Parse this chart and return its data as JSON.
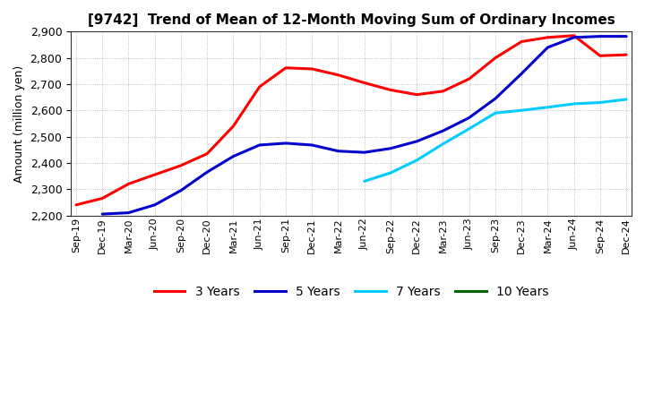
{
  "title": "[9742]  Trend of Mean of 12-Month Moving Sum of Ordinary Incomes",
  "ylabel": "Amount (million yen)",
  "ylim": [
    2200,
    2900
  ],
  "yticks": [
    2200,
    2300,
    2400,
    2500,
    2600,
    2700,
    2800,
    2900
  ],
  "x_labels": [
    "Sep-19",
    "Dec-19",
    "Mar-20",
    "Jun-20",
    "Sep-20",
    "Dec-20",
    "Mar-21",
    "Jun-21",
    "Sep-21",
    "Dec-21",
    "Mar-22",
    "Jun-22",
    "Sep-22",
    "Dec-22",
    "Mar-23",
    "Jun-23",
    "Sep-23",
    "Dec-23",
    "Mar-24",
    "Jun-24",
    "Sep-24",
    "Dec-24"
  ],
  "series_order": [
    "3 Years",
    "5 Years",
    "7 Years",
    "10 Years"
  ],
  "series": {
    "3 Years": {
      "color": "#ff0000",
      "data_x": [
        0,
        1,
        2,
        3,
        4,
        5,
        6,
        7,
        8,
        9,
        10,
        11,
        12,
        13,
        14,
        15,
        16,
        17,
        18,
        19,
        20,
        21
      ],
      "data_y": [
        2240,
        2265,
        2320,
        2355,
        2390,
        2435,
        2540,
        2690,
        2762,
        2758,
        2735,
        2705,
        2678,
        2660,
        2673,
        2720,
        2800,
        2862,
        2878,
        2885,
        2808,
        2812
      ]
    },
    "5 Years": {
      "color": "#0000cc",
      "data_x": [
        1,
        2,
        3,
        4,
        5,
        6,
        7,
        8,
        9,
        10,
        11,
        12,
        13,
        14,
        15,
        16,
        17,
        18,
        19,
        20,
        21
      ],
      "data_y": [
        2205,
        2210,
        2240,
        2295,
        2365,
        2425,
        2468,
        2475,
        2468,
        2445,
        2440,
        2455,
        2482,
        2522,
        2572,
        2645,
        2740,
        2840,
        2878,
        2882,
        2882
      ]
    },
    "7 Years": {
      "color": "#00ccff",
      "data_x": [
        11,
        12,
        13,
        14,
        15,
        16,
        17,
        18,
        19,
        20,
        21
      ],
      "data_y": [
        2330,
        2362,
        2410,
        2472,
        2530,
        2590,
        2600,
        2612,
        2625,
        2630,
        2642
      ]
    },
    "10 Years": {
      "color": "#006600",
      "data_x": [],
      "data_y": []
    }
  },
  "background_color": "#ffffff",
  "plot_background": "#ffffff",
  "grid_color": "#888888",
  "linewidth": 2.2
}
